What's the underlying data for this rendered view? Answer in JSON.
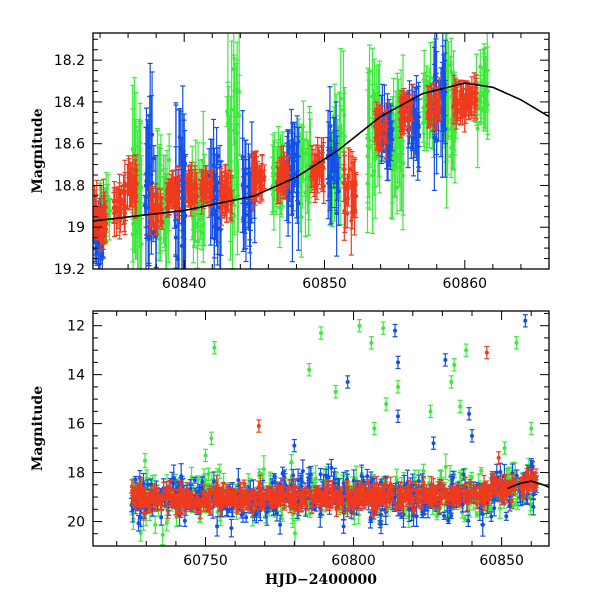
{
  "chart_data": [
    {
      "type": "scatter",
      "title": "",
      "xlabel": "",
      "ylabel": "Magnitude",
      "xlim": [
        60833.5,
        60866
      ],
      "ylim": [
        19.2,
        18.07
      ],
      "y_inverted": true,
      "grid": false,
      "x_ticks": [
        60840,
        60850,
        60860
      ],
      "x_tick_labels": [
        "60840",
        "60850",
        "60860"
      ],
      "y_ticks": [
        18.2,
        18.4,
        18.6,
        18.8,
        19.0,
        19.2
      ],
      "y_tick_labels": [
        "18.2",
        "18.4",
        "18.6",
        "18.8",
        "19",
        "19.2"
      ],
      "series": [
        {
          "band": "green",
          "color": "#3ee83e",
          "clusters": [
            {
              "x": 60834.3,
              "y": 18.92,
              "spread": 0.12
            },
            {
              "x": 60836.7,
              "y": 18.84,
              "spread": 0.38
            },
            {
              "x": 60838.5,
              "y": 18.9,
              "spread": 0.28
            },
            {
              "x": 60841.0,
              "y": 18.88,
              "spread": 0.25
            },
            {
              "x": 60843.5,
              "y": 18.6,
              "spread": 0.42
            },
            {
              "x": 60846.6,
              "y": 18.77,
              "spread": 0.18
            },
            {
              "x": 60848.6,
              "y": 18.72,
              "spread": 0.25
            },
            {
              "x": 60851.0,
              "y": 18.6,
              "spread": 0.3
            },
            {
              "x": 60853.5,
              "y": 18.55,
              "spread": 0.35
            },
            {
              "x": 60855.2,
              "y": 18.6,
              "spread": 0.3
            },
            {
              "x": 60857.4,
              "y": 18.42,
              "spread": 0.18
            },
            {
              "x": 60859.0,
              "y": 18.4,
              "spread": 0.3
            },
            {
              "x": 60861.2,
              "y": 18.36,
              "spread": 0.2
            }
          ]
        },
        {
          "band": "blue",
          "color": "#1450e6",
          "clusters": [
            {
              "x": 60833.8,
              "y": 19.05,
              "spread": 0.12
            },
            {
              "x": 60837.6,
              "y": 18.8,
              "spread": 0.45
            },
            {
              "x": 60839.7,
              "y": 18.85,
              "spread": 0.42
            },
            {
              "x": 60842.2,
              "y": 18.85,
              "spread": 0.3
            },
            {
              "x": 60844.6,
              "y": 18.85,
              "spread": 0.25
            },
            {
              "x": 60847.7,
              "y": 18.72,
              "spread": 0.25
            },
            {
              "x": 60850.6,
              "y": 18.7,
              "spread": 0.25
            },
            {
              "x": 60854.5,
              "y": 18.55,
              "spread": 0.15
            },
            {
              "x": 60856.3,
              "y": 18.48,
              "spread": 0.2
            },
            {
              "x": 60858.2,
              "y": 18.4,
              "spread": 0.25
            }
          ]
        },
        {
          "band": "red",
          "color": "#f03a1e",
          "clusters": [
            {
              "x": 60834.0,
              "y": 18.96,
              "spread": 0.12
            },
            {
              "x": 60835.4,
              "y": 18.9,
              "spread": 0.1
            },
            {
              "x": 60836.2,
              "y": 18.8,
              "spread": 0.1
            },
            {
              "x": 60838.0,
              "y": 18.92,
              "spread": 0.08
            },
            {
              "x": 60839.2,
              "y": 18.85,
              "spread": 0.08
            },
            {
              "x": 60840.5,
              "y": 18.82,
              "spread": 0.08
            },
            {
              "x": 60841.6,
              "y": 18.8,
              "spread": 0.08
            },
            {
              "x": 60843.0,
              "y": 18.85,
              "spread": 0.1
            },
            {
              "x": 60845.3,
              "y": 18.78,
              "spread": 0.1
            },
            {
              "x": 60847.0,
              "y": 18.76,
              "spread": 0.08
            },
            {
              "x": 60849.5,
              "y": 18.72,
              "spread": 0.1
            },
            {
              "x": 60851.8,
              "y": 18.85,
              "spread": 0.15
            },
            {
              "x": 60854.0,
              "y": 18.52,
              "spread": 0.08
            },
            {
              "x": 60855.8,
              "y": 18.45,
              "spread": 0.08
            },
            {
              "x": 60857.8,
              "y": 18.42,
              "spread": 0.08
            },
            {
              "x": 60859.6,
              "y": 18.4,
              "spread": 0.08
            },
            {
              "x": 60860.5,
              "y": 18.38,
              "spread": 0.08
            }
          ]
        }
      ],
      "model_curve": {
        "color": "#000000",
        "points": [
          [
            60833.5,
            18.97
          ],
          [
            60840,
            18.92
          ],
          [
            60845,
            18.85
          ],
          [
            60848,
            18.76
          ],
          [
            60851,
            18.63
          ],
          [
            60854,
            18.47
          ],
          [
            60857,
            18.36
          ],
          [
            60860,
            18.31
          ],
          [
            60862,
            18.33
          ],
          [
            60864,
            18.39
          ],
          [
            60866,
            18.47
          ]
        ]
      }
    },
    {
      "type": "scatter",
      "title": "",
      "xlabel": "HJD−2400000",
      "ylabel": "Magnitude",
      "xlim": [
        60712,
        60866
      ],
      "ylim": [
        21,
        11.4
      ],
      "y_inverted": true,
      "grid": false,
      "x_ticks": [
        60750,
        60800,
        60850
      ],
      "x_tick_labels": [
        "60750",
        "60800",
        "60850"
      ],
      "y_ticks": [
        12,
        14,
        16,
        18,
        20
      ],
      "y_tick_labels": [
        "12",
        "14",
        "16",
        "18",
        "20"
      ],
      "baseline": [
        [
          60725,
          19.0
        ],
        [
          60760,
          19.05
        ],
        [
          60790,
          18.95
        ],
        [
          60820,
          19.0
        ],
        [
          60845,
          18.85
        ],
        [
          60860,
          18.4
        ]
      ],
      "series": [
        {
          "band": "green",
          "color": "#3ee83e",
          "outliers": [
            [
              60753,
              12.9
            ],
            [
              60789,
              12.3
            ],
            [
              60785,
              13.8
            ],
            [
              60802,
              12.0
            ],
            [
              60806,
              12.7
            ],
            [
              60810,
              12.1
            ],
            [
              60794,
              14.7
            ],
            [
              60807,
              16.2
            ],
            [
              60752,
              16.6
            ],
            [
              60750,
              17.3
            ],
            [
              60838,
              13.0
            ],
            [
              60834,
              13.6
            ],
            [
              60833,
              14.3
            ],
            [
              60815,
              14.5
            ],
            [
              60836,
              15.3
            ],
            [
              60855,
              12.7
            ],
            [
              60860,
              16.2
            ],
            [
              60851,
              17.0
            ],
            [
              60811,
              15.2
            ],
            [
              60826,
              15.5
            ]
          ]
        },
        {
          "band": "blue",
          "color": "#1450e6",
          "outliers": [
            [
              60798,
              14.3
            ],
            [
              60814,
              12.2
            ],
            [
              60815,
              13.5
            ],
            [
              60831,
              13.4
            ],
            [
              60858,
              11.8
            ],
            [
              60815,
              15.7
            ],
            [
              60839,
              15.6
            ],
            [
              60840,
              16.5
            ],
            [
              60827,
              16.8
            ],
            [
              60780,
              16.9
            ]
          ]
        },
        {
          "band": "red",
          "color": "#f03a1e",
          "outliers": [
            [
              60768,
              16.1
            ],
            [
              60845,
              13.1
            ],
            [
              60849,
              17.4
            ]
          ]
        }
      ],
      "model_curve": {
        "color": "#000000",
        "points": [
          [
            60852,
            18.65
          ],
          [
            60856,
            18.45
          ],
          [
            60860,
            18.35
          ],
          [
            60864,
            18.5
          ],
          [
            60866,
            18.6
          ]
        ]
      }
    }
  ]
}
